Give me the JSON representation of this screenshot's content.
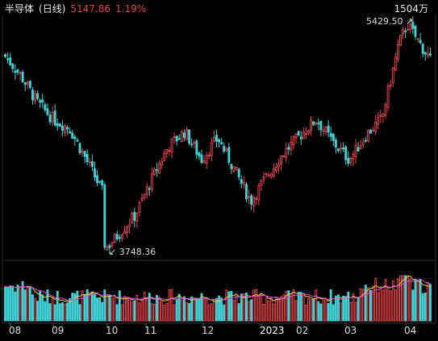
{
  "header": {
    "name": "半导体",
    "period": "(日线)",
    "price": "5147.86",
    "change": "1.19%"
  },
  "volume_scale_label": "1504万",
  "annotations": {
    "high": "5429.50",
    "low": "3748.36"
  },
  "x_axis": {
    "labels": [
      "08",
      "09",
      "10",
      "11",
      "12",
      "2023",
      "02",
      "03",
      "04"
    ]
  },
  "colors": {
    "up": "#e0424b",
    "down": "#3fd1d6",
    "name": "#e8e8e8",
    "price": "#e0424b",
    "grid": "#2a2a2a",
    "ma_yellow": "#e6d23a",
    "ma_magenta": "#e04be0"
  },
  "chart_data": {
    "type": "candlestick",
    "title": "半导体 (日线)",
    "last_close": 5147.86,
    "change_pct": 1.19,
    "high": 5429.5,
    "low": 3748.36,
    "ylim": [
      3700,
      5500
    ],
    "months": [
      "08",
      "09",
      "10",
      "11",
      "12",
      "2023",
      "02",
      "03",
      "04"
    ],
    "close_path": [
      {
        "m": "08",
        "v": 5200
      },
      {
        "m": "08",
        "v": 5050
      },
      {
        "m": "08",
        "v": 4850
      },
      {
        "m": "09",
        "v": 4720
      },
      {
        "m": "09",
        "v": 4650
      },
      {
        "m": "09",
        "v": 4420
      },
      {
        "m": "10",
        "v": 4180
      },
      {
        "m": "10",
        "v": 3760
      },
      {
        "m": "10",
        "v": 4010
      },
      {
        "m": "11",
        "v": 4280
      },
      {
        "m": "11",
        "v": 4520
      },
      {
        "m": "11",
        "v": 4630
      },
      {
        "m": "12",
        "v": 4420
      },
      {
        "m": "12",
        "v": 4580
      },
      {
        "m": "12",
        "v": 4350
      },
      {
        "m": "2023",
        "v": 4110
      },
      {
        "m": "2023",
        "v": 4300
      },
      {
        "m": "2023",
        "v": 4470
      },
      {
        "m": "02",
        "v": 4600
      },
      {
        "m": "02",
        "v": 4720
      },
      {
        "m": "02",
        "v": 4550
      },
      {
        "m": "03",
        "v": 4420
      },
      {
        "m": "03",
        "v": 4600
      },
      {
        "m": "03",
        "v": 4730
      },
      {
        "m": "04",
        "v": 5280
      },
      {
        "m": "04",
        "v": 5380
      },
      {
        "m": "04",
        "v": 5147.86
      }
    ],
    "volume_max": "1504万"
  }
}
